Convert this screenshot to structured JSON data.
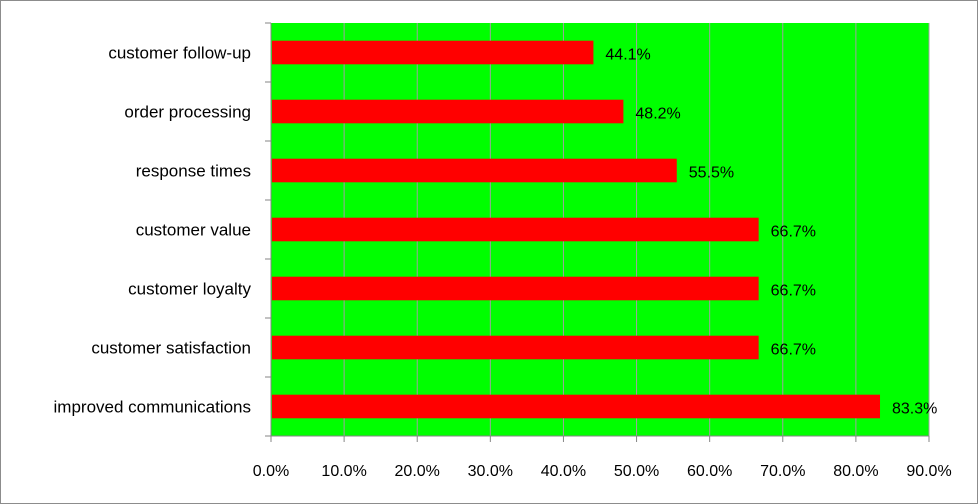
{
  "chart_data": {
    "type": "bar",
    "orientation": "horizontal",
    "categories": [
      "customer follow-up",
      "order processing",
      "response times",
      "customer value",
      "customer loyalty",
      "customer satisfaction",
      "improved communications"
    ],
    "values": [
      44.1,
      48.2,
      55.5,
      66.7,
      66.7,
      66.7,
      83.3
    ],
    "value_labels": [
      "44.1%",
      "48.2%",
      "55.5%",
      "66.7%",
      "66.7%",
      "66.7%",
      "83.3%"
    ],
    "xlim": [
      0,
      90
    ],
    "xticks": [
      0,
      10,
      20,
      30,
      40,
      50,
      60,
      70,
      80,
      90
    ],
    "xtick_labels": [
      "0.0%",
      "10.0%",
      "20.0%",
      "30.0%",
      "40.0%",
      "50.0%",
      "60.0%",
      "70.0%",
      "80.0%",
      "90.0%"
    ],
    "grid": true,
    "legend": "none",
    "title": "",
    "xlabel": "",
    "ylabel": "",
    "colors": {
      "bar": "#ff0000",
      "plot_background": "#00ff00",
      "gridline": "#a0a0a0"
    }
  }
}
